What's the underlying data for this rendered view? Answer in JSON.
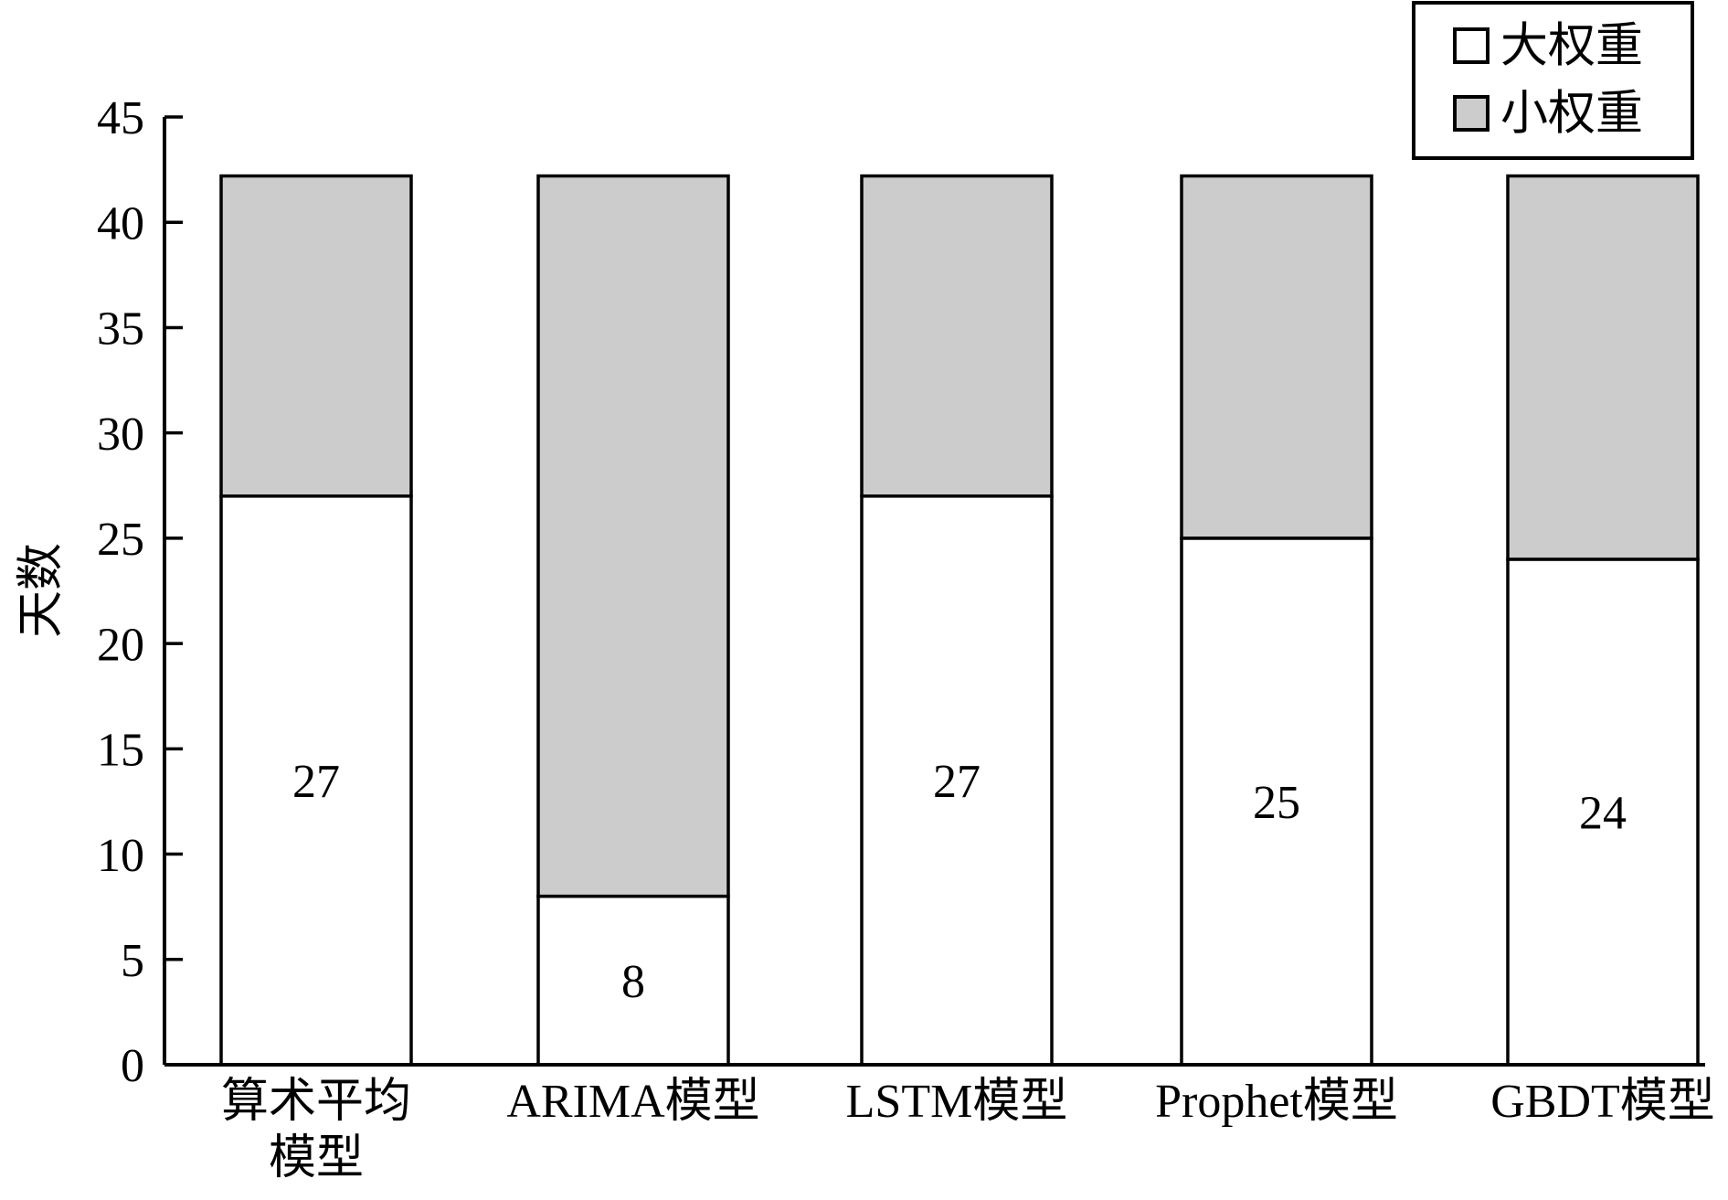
{
  "chart_data": {
    "type": "bar",
    "stacked": true,
    "categories": [
      "算术平均\n模型",
      "ARIMA模型",
      "LSTM模型",
      "Prophet模型",
      "GBDT模型"
    ],
    "series": [
      {
        "name": "大权重",
        "values": [
          27,
          8,
          27,
          25,
          24
        ],
        "color": "#ffffff"
      },
      {
        "name": "小权重",
        "values": [
          15.2,
          34.2,
          15.2,
          17.2,
          18.2
        ],
        "color": "#cccccc"
      }
    ],
    "data_labels": [
      "27",
      "8",
      "27",
      "25",
      "24"
    ],
    "ylabel": "天数",
    "xlabel": "",
    "ylim": [
      0,
      45
    ],
    "yticks": [
      0,
      5,
      10,
      15,
      20,
      25,
      30,
      35,
      40,
      45
    ],
    "grid": false,
    "legend": {
      "position": "top-right",
      "entries": [
        "大权重",
        "小权重"
      ]
    }
  }
}
